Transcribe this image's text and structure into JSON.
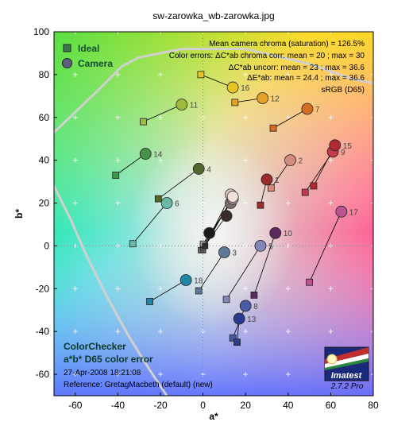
{
  "chart_data": {
    "type": "scatter",
    "title": "sw-zarowka_wb-zarowka.jpg",
    "xlabel": "a*",
    "ylabel": "b*",
    "xlim": [
      -70,
      80
    ],
    "ylim": [
      -70,
      100
    ],
    "xticks": [
      "-60",
      "-40",
      "-20",
      "0",
      "20",
      "40",
      "60",
      "80"
    ],
    "yticks": [
      "-60",
      "-40",
      "-20",
      "0",
      "20",
      "40",
      "60",
      "80",
      "100"
    ],
    "legend": [
      {
        "name": "Ideal",
        "marker": "square"
      },
      {
        "name": "Camera",
        "marker": "circle"
      }
    ],
    "annotations_top_right": [
      "Mean camera chroma (saturation) = 126.5%",
      "Color errors:  ΔC*ab chroma corr:  mean = 20 ;  max = 30",
      "ΔC*ab uncorr:  mean = 23 ;  max = 36.6",
      "ΔE*ab:  mean = 24.4 ;  max = 36.6",
      "sRGB (D65)"
    ],
    "info_lower_left": {
      "title1": "ColorChecker",
      "title2": "a*b* D65 color error",
      "date": "27-Apr-2008 18:21:08",
      "reference": "Reference: GretagMacbeth (default) (new)"
    },
    "logo": {
      "text": "Imatest",
      "version": "2.7.2  Pro"
    },
    "patches": [
      {
        "n": "1",
        "ideal": [
          27,
          19
        ],
        "camera": [
          30,
          31
        ],
        "color": "#9b2c2c"
      },
      {
        "n": "2",
        "ideal": [
          32,
          27
        ],
        "camera": [
          41,
          40
        ],
        "color": "#d48a7e"
      },
      {
        "n": "3",
        "ideal": [
          -2,
          -21
        ],
        "camera": [
          10,
          -3
        ],
        "color": "#5c7a9a"
      },
      {
        "n": "4",
        "ideal": [
          -21,
          22
        ],
        "camera": [
          -2,
          36
        ],
        "color": "#55672c"
      },
      {
        "n": "5",
        "ideal": [
          11,
          -25
        ],
        "camera": [
          27,
          0
        ],
        "color": "#8585b8"
      },
      {
        "n": "6",
        "ideal": [
          -33,
          1
        ],
        "camera": [
          -17,
          20
        ],
        "color": "#6ab8a6"
      },
      {
        "n": "7",
        "ideal": [
          33,
          55
        ],
        "camera": [
          49,
          64
        ],
        "color": "#d86d22"
      },
      {
        "n": "8",
        "ideal": [
          14,
          -43
        ],
        "camera": [
          20,
          -28
        ],
        "color": "#4a5ba5"
      },
      {
        "n": "9",
        "ideal": [
          48,
          25
        ],
        "camera": [
          61,
          44
        ],
        "color": "#c5384a"
      },
      {
        "n": "10",
        "ideal": [
          24,
          -23
        ],
        "camera": [
          34,
          6
        ],
        "color": "#5c2a60"
      },
      {
        "n": "11",
        "ideal": [
          -28,
          58
        ],
        "camera": [
          -10,
          66
        ],
        "color": "#9fbb3c"
      },
      {
        "n": "12",
        "ideal": [
          15,
          67
        ],
        "camera": [
          28,
          69
        ],
        "color": "#e6a226"
      },
      {
        "n": "13",
        "ideal": [
          16,
          -45
        ],
        "camera": [
          17,
          -34
        ],
        "color": "#2a3a90"
      },
      {
        "n": "14",
        "ideal": [
          -41,
          33
        ],
        "camera": [
          -27,
          43
        ],
        "color": "#469448"
      },
      {
        "n": "15",
        "ideal": [
          52,
          28
        ],
        "camera": [
          62,
          47
        ],
        "color": "#b22832"
      },
      {
        "n": "16",
        "ideal": [
          -1,
          80
        ],
        "camera": [
          14,
          74
        ],
        "color": "#e8c520"
      },
      {
        "n": "17",
        "ideal": [
          50,
          -17
        ],
        "camera": [
          65,
          16
        ],
        "color": "#ba5490"
      },
      {
        "n": "18",
        "ideal": [
          -25,
          -26
        ],
        "camera": [
          -8,
          -16
        ],
        "color": "#1f86a5"
      }
    ],
    "neutrals_ideal": [
      [
        0,
        0
      ],
      [
        0,
        -1
      ],
      [
        0,
        1
      ],
      [
        -1,
        -2
      ],
      [
        0,
        -2
      ],
      [
        1,
        0
      ]
    ],
    "neutrals_camera": [
      [
        3,
        6
      ],
      [
        11,
        14
      ],
      [
        13,
        20
      ],
      [
        14,
        22
      ],
      [
        13,
        24
      ],
      [
        14,
        23
      ]
    ]
  },
  "colors": {
    "frame": "#000000",
    "gamut_line": "#d0d0d0",
    "connector": "#000000"
  }
}
